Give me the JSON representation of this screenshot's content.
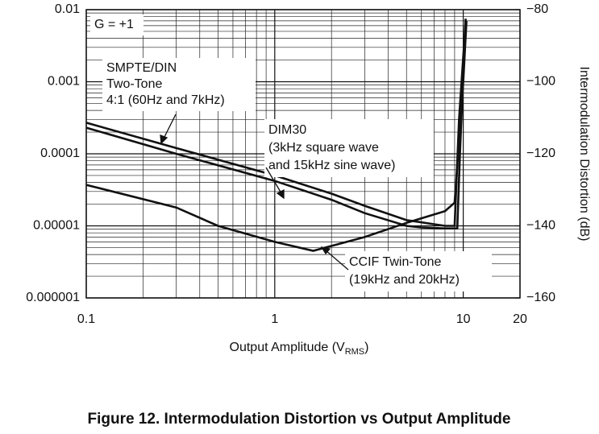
{
  "chart_data": {
    "type": "line",
    "caption": "Figure 12. Intermodulation Distortion vs Output Amplitude",
    "x_label": [
      "Output Amplitude (V",
      "RMS",
      ")"
    ],
    "y2_label": "Intermodulation Distortion (dB)",
    "xlim": [
      0.1,
      20
    ],
    "xticks": [
      0.1,
      1,
      10,
      20
    ],
    "xscale": "log",
    "ylim": [
      1e-06,
      0.01
    ],
    "yticks": [
      0.01,
      0.001,
      0.0001,
      1e-05,
      1e-06
    ],
    "yscale": "log",
    "y2lim": [
      -160,
      -80
    ],
    "y2ticks": [
      {
        "value": -80,
        "label": "−80"
      },
      {
        "value": -100,
        "label": "−100"
      },
      {
        "value": -120,
        "label": "−120"
      },
      {
        "value": -140,
        "label": "−140"
      },
      {
        "value": -160,
        "label": "−160"
      }
    ],
    "grid": true,
    "annotations": [
      {
        "lines": [
          "G = +1"
        ]
      },
      {
        "lines": [
          "SMPTE/DIN",
          "Two-Tone",
          "4:1 (60Hz and 7kHz)"
        ]
      },
      {
        "lines": [
          "DIM30",
          "(3kHz square wave",
          "and 15kHz sine wave)"
        ]
      },
      {
        "lines": [
          "CCIF Twin-Tone",
          "(19kHz and 20kHz)"
        ]
      }
    ],
    "series": [
      {
        "color": "#111111",
        "x": [
          0.1,
          0.3,
          1,
          2,
          3,
          5,
          8,
          9,
          9.5,
          10.3
        ],
        "values": [
          0.00027,
          0.00012,
          5e-05,
          2.8e-05,
          1.9e-05,
          1.2e-05,
          1e-05,
          1e-05,
          0.0003,
          0.007
        ]
      },
      {
        "color": "#111111",
        "x": [
          0.1,
          0.3,
          1,
          2,
          3,
          5,
          6,
          8,
          9.3,
          9.6,
          10.3
        ],
        "values": [
          0.00023,
          0.0001,
          4.2e-05,
          2.3e-05,
          1.5e-05,
          1e-05,
          9.5e-06,
          9.2e-06,
          9.2e-06,
          0.0001,
          0.0075
        ]
      },
      {
        "color": "#111111",
        "x": [
          0.1,
          0.3,
          0.5,
          1,
          1.6,
          3,
          5,
          8,
          9,
          10,
          10.4
        ],
        "values": [
          3.7e-05,
          1.8e-05,
          1e-05,
          6e-06,
          4.5e-06,
          7e-06,
          1.1e-05,
          1.6e-05,
          2.1e-05,
          0.001,
          0.007
        ]
      }
    ]
  }
}
